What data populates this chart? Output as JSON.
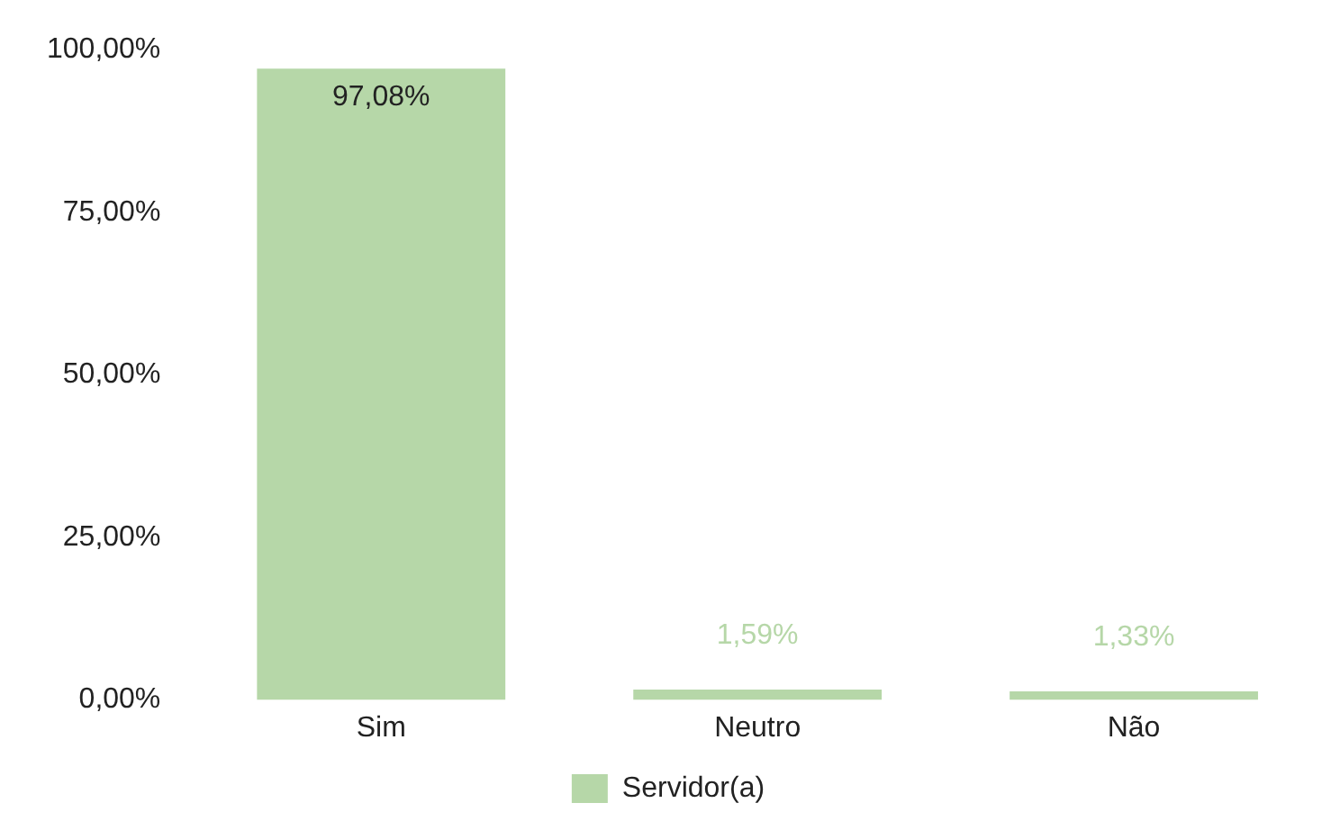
{
  "chart_data": {
    "type": "bar",
    "categories": [
      "Sim",
      "Neutro",
      "Não"
    ],
    "series": [
      {
        "name": "Servidor(a)",
        "color": "#b6d7a8",
        "values": [
          97.08,
          1.59,
          1.33
        ],
        "value_labels": [
          "97,08%",
          "1,59%",
          "1,33%"
        ]
      }
    ],
    "ylim": [
      0,
      100
    ],
    "yticks": [
      {
        "value": 0,
        "label": "0,00%"
      },
      {
        "value": 25,
        "label": "25,00%"
      },
      {
        "value": 50,
        "label": "50,00%"
      },
      {
        "value": 75,
        "label": "75,00%"
      },
      {
        "value": 100,
        "label": "100,00%"
      }
    ],
    "grid": false,
    "legend": "bottom"
  }
}
